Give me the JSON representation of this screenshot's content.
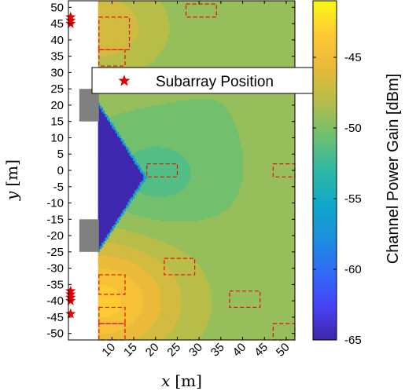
{
  "chart_data": {
    "type": "heatmap",
    "title": "",
    "xlabel_var": "x",
    "xlabel_unit": "[m]",
    "ylabel_var": "y",
    "ylabel_unit": "[m]",
    "xlim": [
      0,
      52
    ],
    "ylim": [
      -52,
      52
    ],
    "x_ticks": [
      10,
      15,
      20,
      25,
      30,
      35,
      40,
      45,
      50
    ],
    "y_ticks": [
      -50,
      -45,
      -40,
      -35,
      -30,
      -25,
      -20,
      -15,
      -10,
      -5,
      0,
      5,
      10,
      15,
      20,
      25,
      30,
      35,
      40,
      45,
      50
    ],
    "colorbar": {
      "label": "Channel Power Gain [dBm]",
      "range": [
        -65,
        -41
      ],
      "ticks": [
        -65,
        -60,
        -55,
        -50,
        -45
      ],
      "colormap": [
        "#3e26a8",
        "#4743f6",
        "#2f6cf6",
        "#1b8fdf",
        "#10a8c9",
        "#2fb8a3",
        "#6cc070",
        "#b4bd4a",
        "#e8b939",
        "#fec836",
        "#f9fb15"
      ]
    },
    "legend": {
      "label": "Subarray Position",
      "marker": "star",
      "color": "#e00000",
      "placement": "top-left"
    },
    "subarray_positions": [
      {
        "x": 0.5,
        "y": 47
      },
      {
        "x": 0.5,
        "y": 46
      },
      {
        "x": 0.5,
        "y": 45
      },
      {
        "x": 0.5,
        "y": -37
      },
      {
        "x": 0.5,
        "y": -38
      },
      {
        "x": 0.5,
        "y": -39
      },
      {
        "x": 0.5,
        "y": -40
      },
      {
        "x": 0.5,
        "y": -44
      }
    ],
    "obstacles": [
      {
        "x0": 2.5,
        "x1": 7,
        "y0": 15,
        "y1": 25
      },
      {
        "x0": 2.5,
        "x1": 7,
        "y0": -25,
        "y1": -15
      }
    ],
    "user_regions": [
      {
        "x0": 7,
        "x1": 14,
        "y0": 37,
        "y1": 47
      },
      {
        "x0": 7,
        "x1": 13,
        "y0": 32,
        "y1": 37
      },
      {
        "x0": 27,
        "x1": 34,
        "y0": 47,
        "y1": 51
      },
      {
        "x0": 18,
        "x1": 25,
        "y0": -2,
        "y1": 2
      },
      {
        "x0": 47,
        "x1": 52,
        "y0": -2,
        "y1": 2
      },
      {
        "x0": 22,
        "x1": 29,
        "y0": -32,
        "y1": -27
      },
      {
        "x0": 7,
        "x1": 13,
        "y0": -38,
        "y1": -32
      },
      {
        "x0": 7,
        "x1": 13,
        "y0": -47,
        "y1": -42
      },
      {
        "x0": 7,
        "x1": 13,
        "y0": -52,
        "y1": -47
      },
      {
        "x0": 37,
        "x1": 44,
        "y0": -42,
        "y1": -37
      },
      {
        "x0": 47,
        "x1": 52,
        "y0": -52,
        "y1": -47
      }
    ],
    "dead_zone_apex": {
      "x": 18,
      "y": -2
    },
    "dead_zone_value": -65
  }
}
